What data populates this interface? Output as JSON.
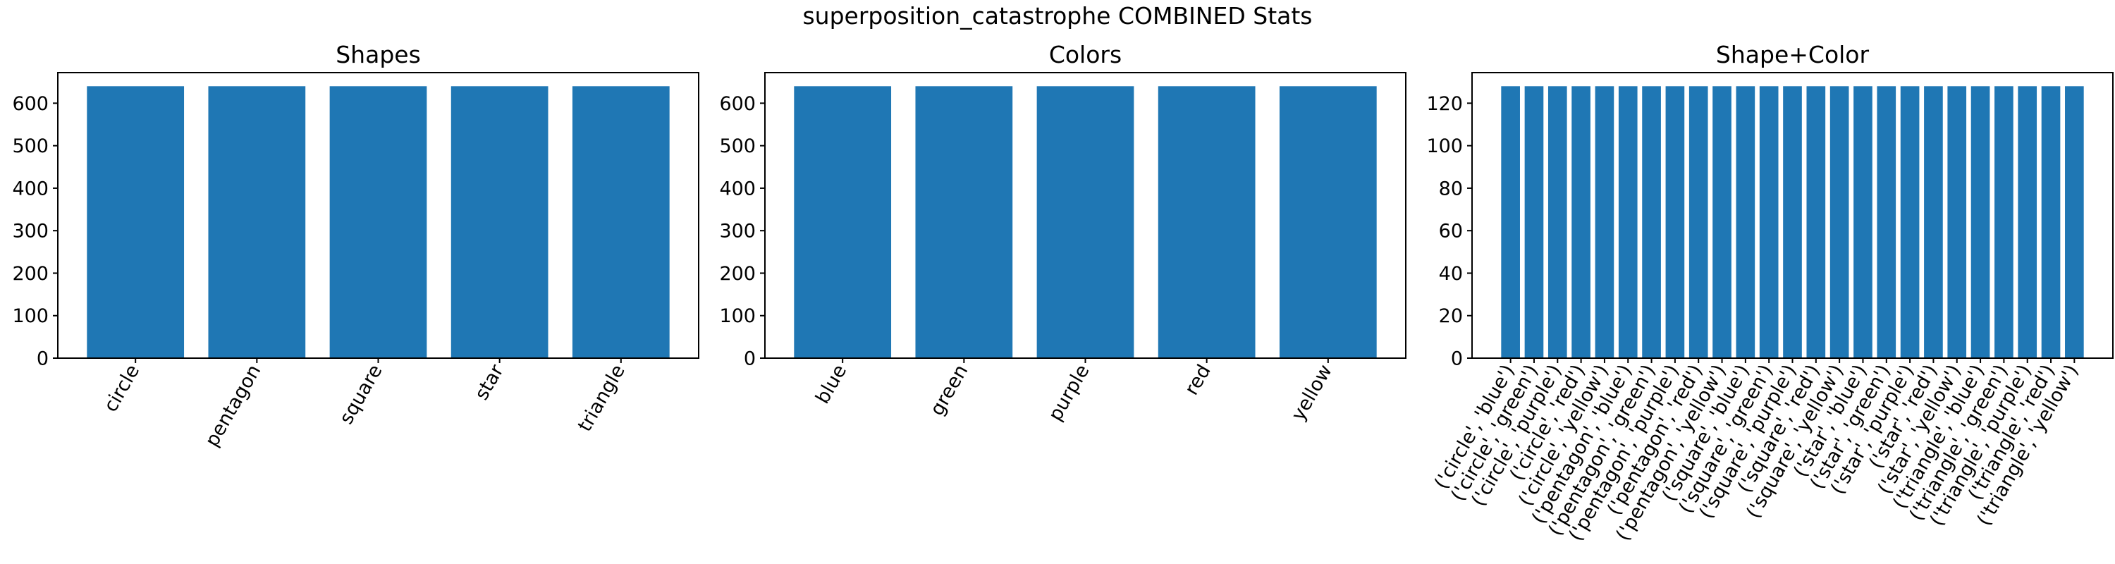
{
  "figure": {
    "title": "superposition_catastrophe COMBINED Stats"
  },
  "colors": {
    "bar": "#1f77b4",
    "axes": "#000000",
    "background": "#ffffff"
  },
  "chart_data": [
    {
      "type": "bar",
      "title": "Shapes",
      "xlabel": "",
      "ylabel": "",
      "ylim": [
        0,
        672
      ],
      "yticks": [
        0,
        100,
        200,
        300,
        400,
        500,
        600
      ],
      "grid": false,
      "legend": "none",
      "categories": [
        "circle",
        "pentagon",
        "square",
        "star",
        "triangle"
      ],
      "values": [
        640,
        640,
        640,
        640,
        640
      ]
    },
    {
      "type": "bar",
      "title": "Colors",
      "xlabel": "",
      "ylabel": "",
      "ylim": [
        0,
        672
      ],
      "yticks": [
        0,
        100,
        200,
        300,
        400,
        500,
        600
      ],
      "grid": false,
      "legend": "none",
      "categories": [
        "blue",
        "green",
        "purple",
        "red",
        "yellow"
      ],
      "values": [
        640,
        640,
        640,
        640,
        640
      ]
    },
    {
      "type": "bar",
      "title": "Shape+Color",
      "xlabel": "",
      "ylabel": "",
      "ylim": [
        0,
        134.4
      ],
      "yticks": [
        0,
        20,
        40,
        60,
        80,
        100,
        120
      ],
      "grid": false,
      "legend": "none",
      "categories": [
        "('circle', 'blue')",
        "('circle', 'green')",
        "('circle', 'purple')",
        "('circle', 'red')",
        "('circle', 'yellow')",
        "('pentagon', 'blue')",
        "('pentagon', 'green')",
        "('pentagon', 'purple')",
        "('pentagon', 'red')",
        "('pentagon', 'yellow')",
        "('square', 'blue')",
        "('square', 'green')",
        "('square', 'purple')",
        "('square', 'red')",
        "('square', 'yellow')",
        "('star', 'blue')",
        "('star', 'green')",
        "('star', 'purple')",
        "('star', 'red')",
        "('star', 'yellow')",
        "('triangle', 'blue')",
        "('triangle', 'green')",
        "('triangle', 'purple')",
        "('triangle', 'red')",
        "('triangle', 'yellow')"
      ],
      "values": [
        128,
        128,
        128,
        128,
        128,
        128,
        128,
        128,
        128,
        128,
        128,
        128,
        128,
        128,
        128,
        128,
        128,
        128,
        128,
        128,
        128,
        128,
        128,
        128,
        128
      ]
    }
  ]
}
